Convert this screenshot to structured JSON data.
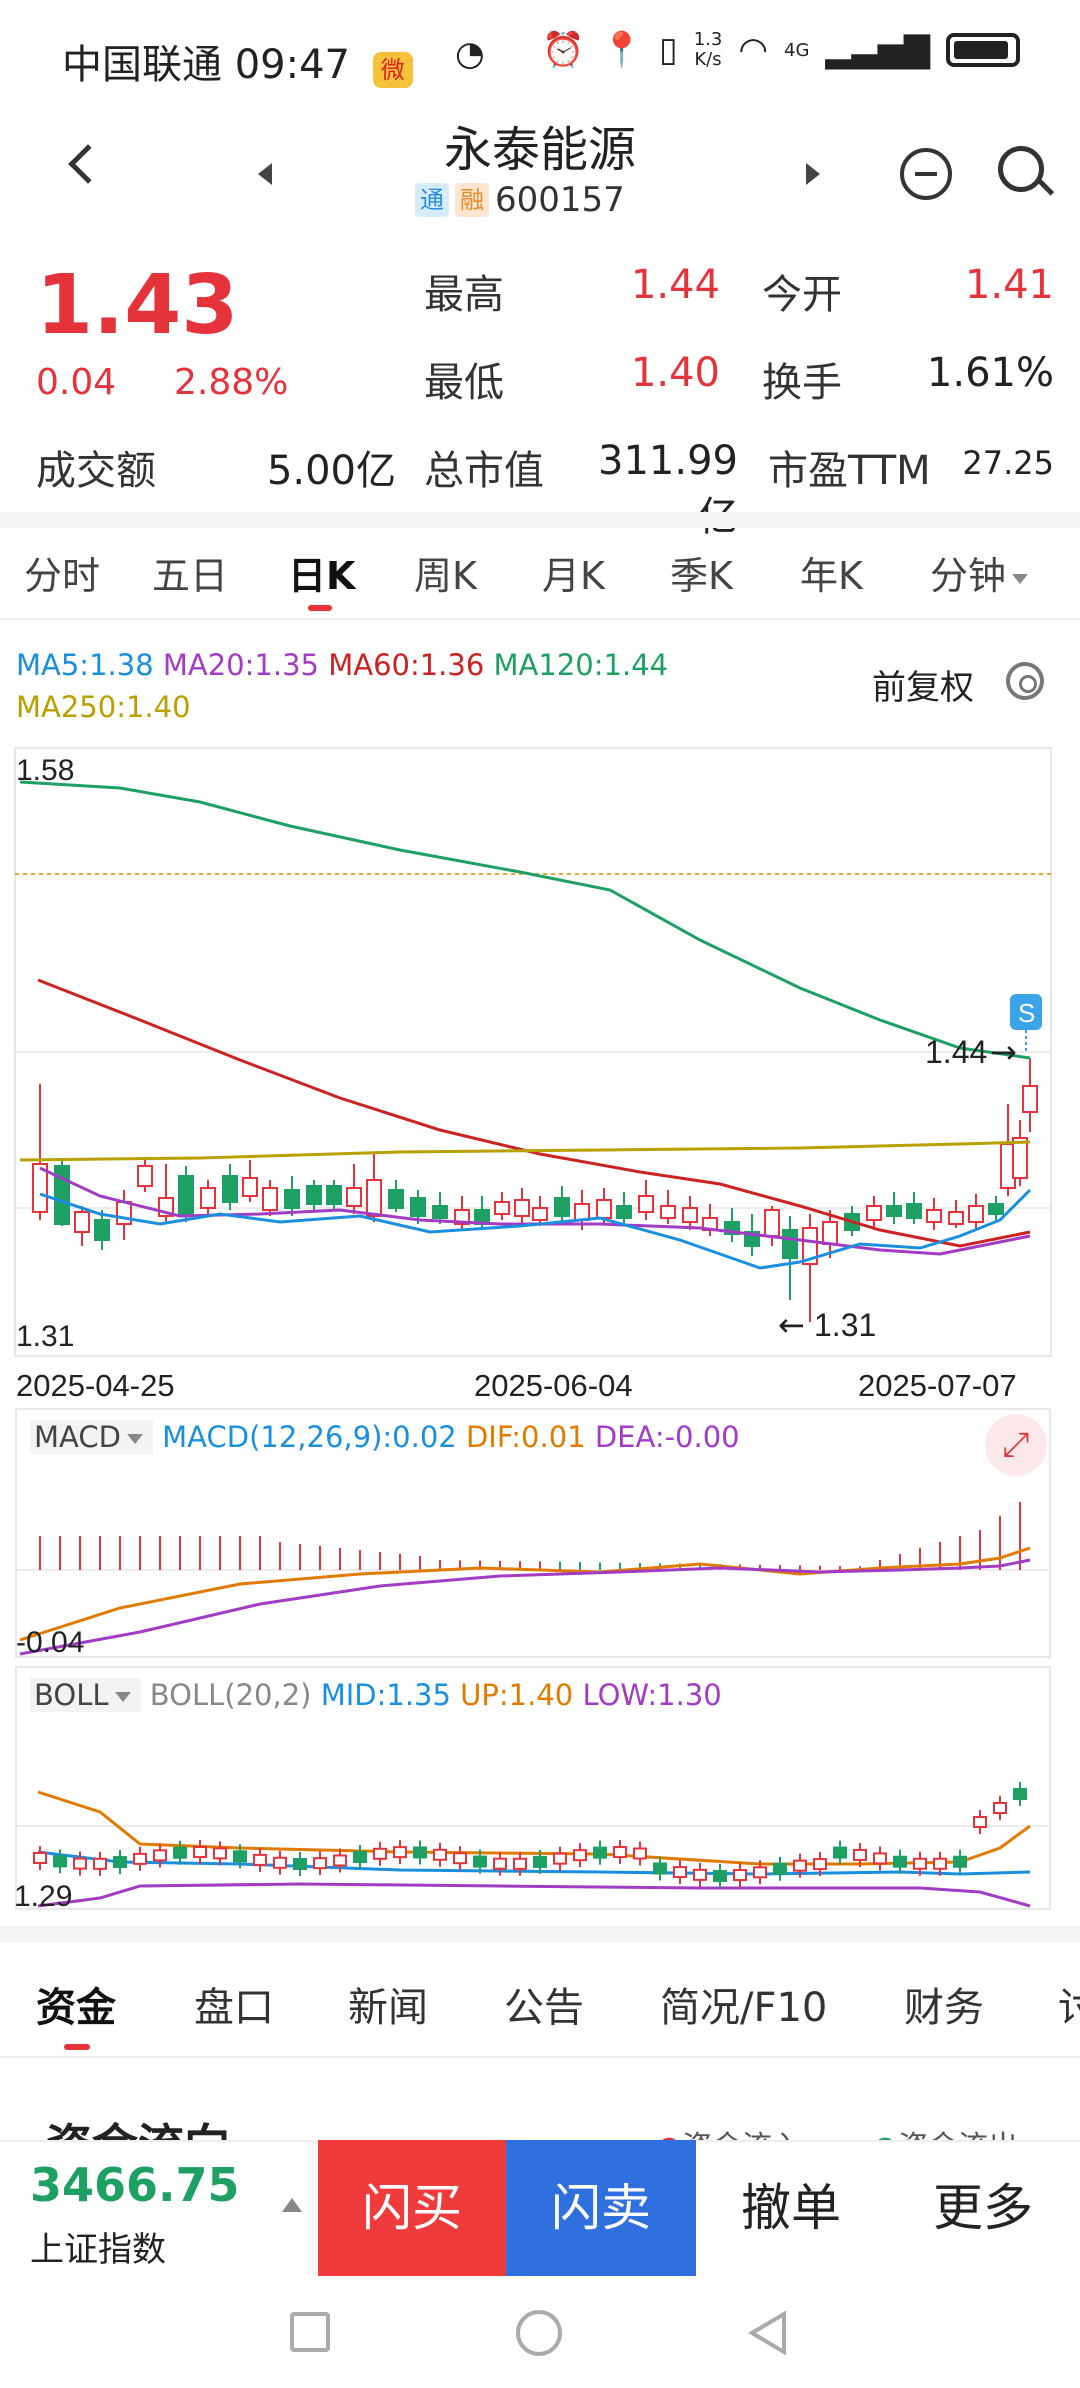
{
  "status_bar": {
    "carrier": "中国联通",
    "time": "09:47",
    "net_speed_top": "1.3",
    "net_speed_bottom": "K/s",
    "network": "4G"
  },
  "header": {
    "title": "永泰能源",
    "tag1": "通",
    "tag2": "融",
    "code": "600157"
  },
  "quote": {
    "price": "1.43",
    "change": "0.04",
    "change_pct": "2.88%",
    "high_label": "最高",
    "high": "1.44",
    "open_label": "今开",
    "open": "1.41",
    "low_label": "最低",
    "low": "1.40",
    "turnover_label": "换手",
    "turnover": "1.61%",
    "amount_label": "成交额",
    "amount": "5.00亿",
    "mktcap_label": "总市值",
    "mktcap": "311.99亿",
    "pe_label": "市盈TTM",
    "pe": "27.25"
  },
  "chart_tabs": [
    "分时",
    "五日",
    "日K",
    "周K",
    "月K",
    "季K",
    "年K",
    "分钟"
  ],
  "ma_legend": {
    "ma5": "MA5:1.38",
    "ma20": "MA20:1.35",
    "ma60": "MA60:1.36",
    "ma120": "MA120:1.44",
    "ma250": "MA250:1.40",
    "adjust": "前复权"
  },
  "colors": {
    "up": "#e5333c",
    "down": "#1ea064",
    "ma5": "#1a8fe0",
    "ma20": "#a23cc4",
    "ma60": "#cc2222",
    "ma120": "#1ea064",
    "ma250": "#b8a000",
    "buy": "#ef3b3b",
    "sell": "#2f6fde"
  },
  "kline": {
    "ymax_label": "1.58",
    "ymin_label": "1.31",
    "high_marker": "1.44",
    "low_marker": "1.31",
    "signal": "S",
    "dates": [
      "2025-04-25",
      "2025-06-04",
      "2025-07-07"
    ]
  },
  "macd": {
    "name": "MACD",
    "params": "MACD(12,26,9):0.02",
    "dif": "DIF:0.01",
    "dea": "DEA:-0.00",
    "ylabel": "-0.04"
  },
  "boll": {
    "name": "BOLL",
    "params": "BOLL(20,2)",
    "mid": "MID:1.35",
    "up": "UP:1.40",
    "low": "LOW:1.30",
    "ylabel": "1.29"
  },
  "bottom_tabs": [
    "资金",
    "盘口",
    "新闻",
    "公告",
    "简况/F10",
    "财务",
    "讨"
  ],
  "section_partial": {
    "title": "资金流向",
    "legend_in": "资金流入",
    "legend_out": "资金流出"
  },
  "index": {
    "value": "3466.75",
    "name": "上证指数"
  },
  "actions": {
    "buy": "闪买",
    "sell": "闪卖",
    "cancel": "撤单",
    "more": "更多"
  }
}
